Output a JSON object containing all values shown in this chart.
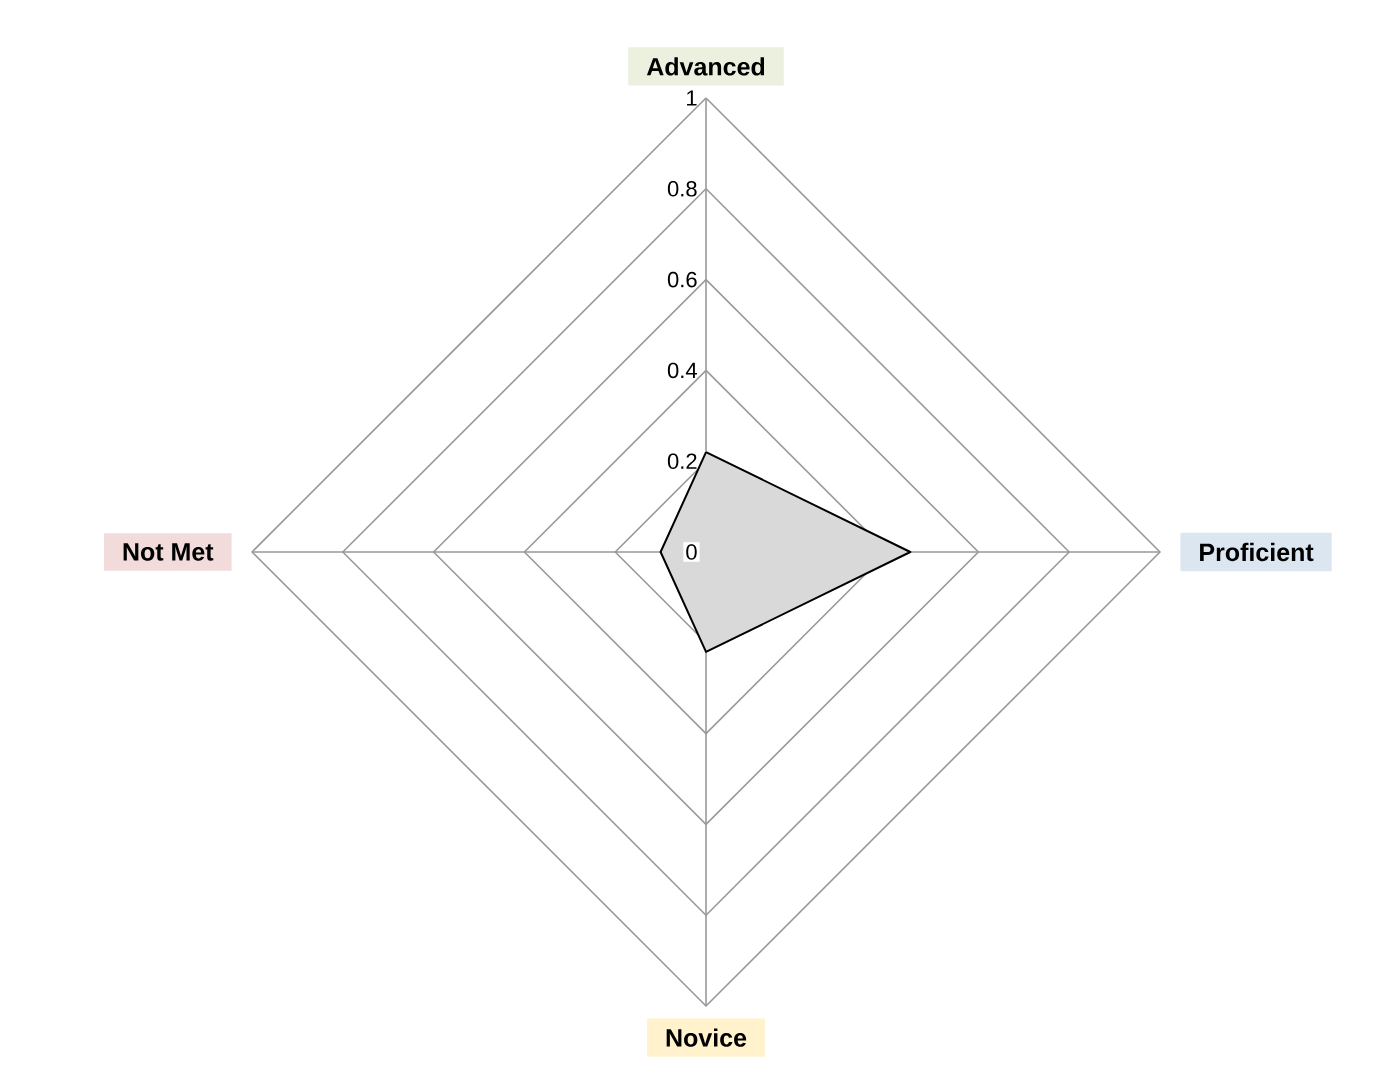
{
  "chart_data": {
    "type": "radar",
    "categories": [
      "Advanced",
      "Proficient",
      "Novice",
      "Not Met"
    ],
    "series": [
      {
        "color": "#d9d9d9",
        "values": [
          0.22,
          0.45,
          0.22,
          0.1
        ]
      }
    ],
    "ylim": [
      0,
      1
    ],
    "yticks": [
      0,
      0.2,
      0.4,
      0.6,
      0.8,
      1
    ],
    "grid": true
  }
}
